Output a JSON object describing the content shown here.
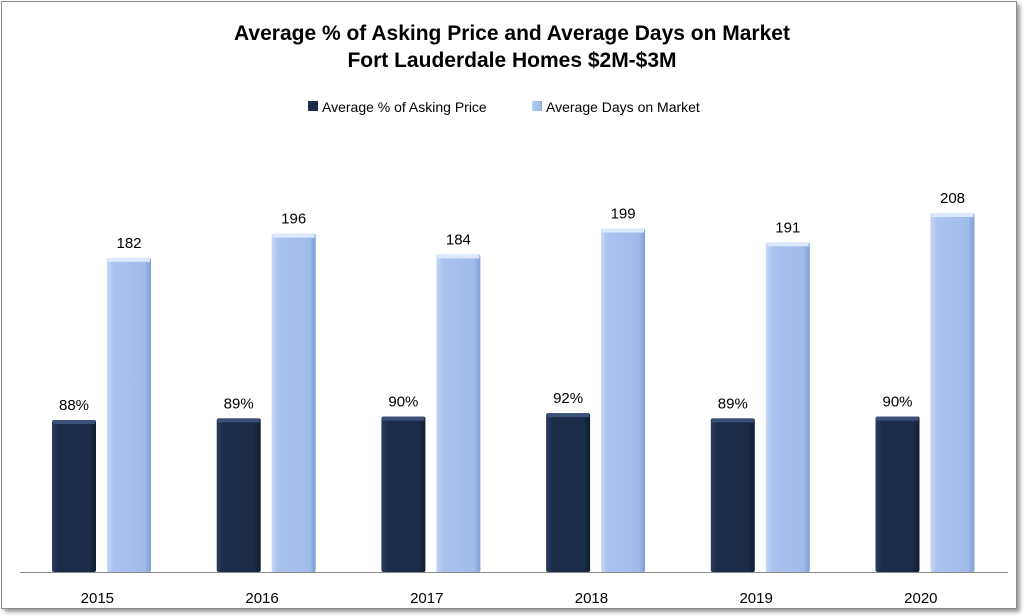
{
  "chart_data": {
    "type": "bar",
    "title": "Average % of Asking Price and Average Days on Market",
    "subtitle": "Fort Lauderdale Homes $2M-$3M",
    "xlabel": "",
    "ylabel": "",
    "categories": [
      "2015",
      "2016",
      "2017",
      "2018",
      "2019",
      "2020"
    ],
    "series": [
      {
        "name": "Average % of Asking Price",
        "values": [
          88,
          89,
          90,
          92,
          89,
          90
        ],
        "labels": [
          "88%",
          "89%",
          "90%",
          "92%",
          "89%",
          "90%"
        ],
        "color": "#1b2c48"
      },
      {
        "name": "Average Days on Market",
        "values": [
          182,
          196,
          184,
          199,
          191,
          208
        ],
        "labels": [
          "182",
          "196",
          "184",
          "199",
          "191",
          "208"
        ],
        "color": "#a9c2ee"
      }
    ],
    "ylim": [
      0,
      240
    ],
    "grid": false,
    "legend": "top-center"
  }
}
